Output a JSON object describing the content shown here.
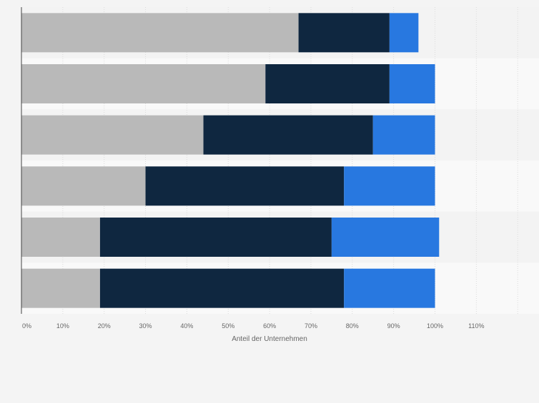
{
  "chart_data": {
    "type": "bar",
    "orientation": "horizontal",
    "stacked": true,
    "categories": [
      "",
      "",
      "",
      "",
      "",
      ""
    ],
    "series": [
      {
        "color": "#b9b9b9",
        "values": [
          67,
          59,
          44,
          30,
          19,
          19
        ]
      },
      {
        "color": "#0f2740",
        "values": [
          22,
          30,
          41,
          48,
          56,
          59
        ]
      },
      {
        "color": "#2878e0",
        "values": [
          7,
          11,
          15,
          22,
          26,
          22
        ]
      }
    ],
    "xlabel": "Anteil der Unternehmen",
    "ylabel": "",
    "xlim": [
      0,
      120
    ],
    "ticks": [
      0,
      10,
      20,
      30,
      40,
      50,
      60,
      70,
      80,
      90,
      100,
      110
    ],
    "tick_labels": [
      "0%",
      "10%",
      "20%",
      "30%",
      "40%",
      "50%",
      "60%",
      "70%",
      "80%",
      "90%",
      "100%",
      "110%"
    ],
    "grid": true,
    "legend": "none"
  }
}
